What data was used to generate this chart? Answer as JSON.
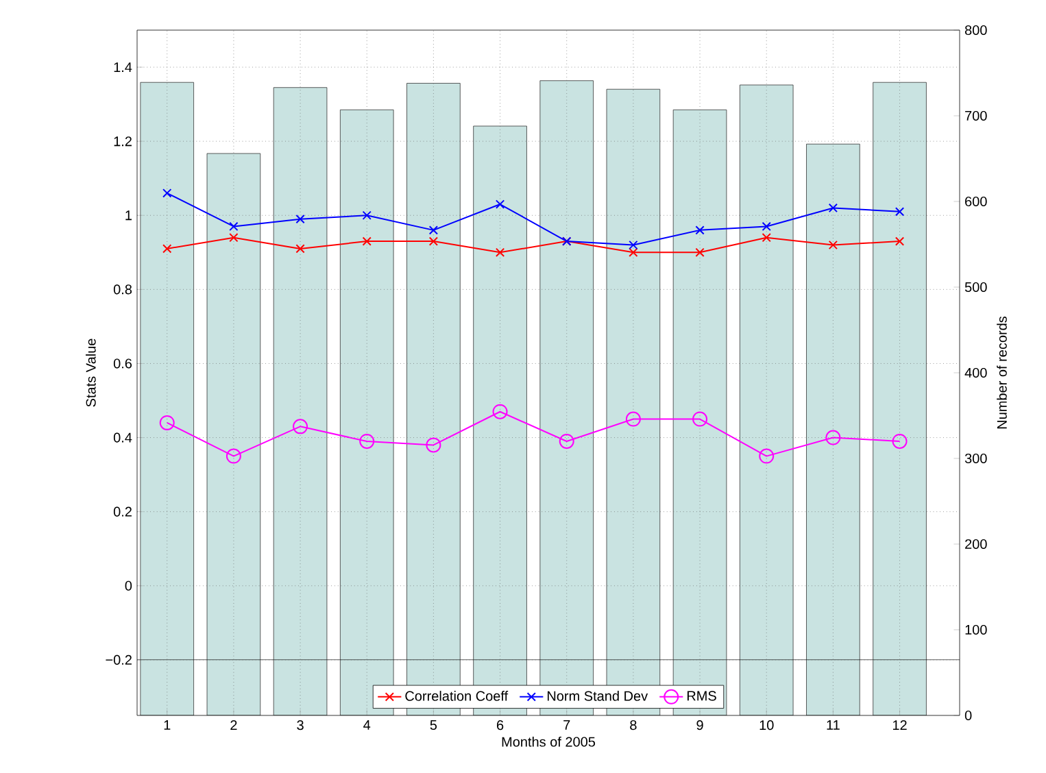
{
  "chart_data": {
    "type": "bar",
    "xlabel": "Months of 2005",
    "ylabel": "Stats Value",
    "y2label": "Number of records",
    "categories": [
      "1",
      "2",
      "3",
      "4",
      "5",
      "6",
      "7",
      "8",
      "9",
      "10",
      "11",
      "12"
    ],
    "series": [
      {
        "axis": "y2",
        "color": "#c9e3e1",
        "values": [
          739,
          656,
          733,
          707,
          738,
          688,
          741,
          731,
          707,
          736,
          667,
          739
        ]
      },
      {
        "type": "line",
        "name": "Correlation Coeff",
        "color": "#ff0000",
        "marker": "cross",
        "values": [
          0.91,
          0.94,
          0.91,
          0.93,
          0.93,
          0.9,
          0.93,
          0.9,
          0.9,
          0.94,
          0.92,
          0.93
        ]
      },
      {
        "type": "line",
        "name": "Norm Stand Dev",
        "color": "#0000ff",
        "marker": "cross",
        "values": [
          1.06,
          0.97,
          0.99,
          1.0,
          0.96,
          1.03,
          0.93,
          0.92,
          0.96,
          0.97,
          1.02,
          1.01
        ]
      },
      {
        "type": "line",
        "name": "RMS",
        "color": "#ff00ff",
        "marker": "circle",
        "values": [
          0.44,
          0.35,
          0.43,
          0.39,
          0.38,
          0.47,
          0.39,
          0.45,
          0.45,
          0.35,
          0.4,
          0.39
        ]
      }
    ],
    "ylim": [
      -0.35,
      1.5
    ],
    "yticks": [
      {
        "value": -0.2,
        "label": "−0.2"
      },
      0,
      0.2,
      0.4,
      0.6,
      0.8,
      1,
      1.2,
      1.4
    ],
    "y2lim": [
      0,
      800
    ],
    "y2ticks": [
      0,
      100,
      200,
      300,
      400,
      500,
      600,
      700,
      800
    ],
    "ref_lines": [
      {
        "axis": "y",
        "value": -0.2,
        "color": "#000000"
      }
    ],
    "grid": true,
    "legend": "bottom"
  }
}
